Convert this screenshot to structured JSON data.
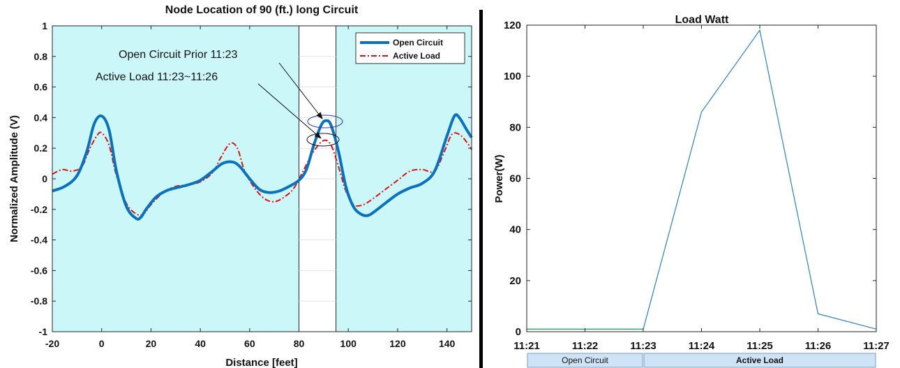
{
  "chart_data": [
    {
      "type": "line",
      "title": "Node Location of 90 (ft.) long Circuit",
      "xlabel": "Distance [feet]",
      "ylabel": "Normalized Amplitude (V)",
      "xlim": [
        -20,
        150
      ],
      "ylim": [
        -1,
        1
      ],
      "xticks": [
        "-20",
        "0",
        "20",
        "40",
        "60",
        "80",
        "100",
        "120",
        "140"
      ],
      "yticks": [
        "-1",
        "-0.8",
        "-0.6",
        "-0.4",
        "-0.2",
        "0",
        "0.2",
        "0.4",
        "0.6",
        "0.8",
        "1"
      ],
      "shaded_regions": [
        {
          "x": [
            -20,
            80
          ],
          "color": "#ccf7f9"
        },
        {
          "x": [
            95,
            150
          ],
          "color": "#ccf7f9"
        }
      ],
      "legend": {
        "placement": "top-right",
        "entries": [
          "Open Circuit",
          "Active Load"
        ]
      },
      "series": [
        {
          "name": "Open Circuit",
          "color": "#0a72bd",
          "style": "solid-thick",
          "x": [
            -20,
            -15,
            -10,
            -6,
            -3,
            0,
            3,
            6,
            10,
            14,
            16,
            18,
            22,
            26,
            30,
            35,
            40,
            45,
            49,
            53,
            56,
            60,
            64,
            68,
            72,
            76,
            80,
            83,
            86,
            89,
            91,
            93,
            96,
            99,
            102,
            105,
            108,
            111,
            115,
            120,
            125,
            130,
            135,
            140,
            143,
            145,
            148,
            150
          ],
          "y": [
            -0.08,
            -0.05,
            0.02,
            0.18,
            0.36,
            0.41,
            0.32,
            0.05,
            -0.18,
            -0.26,
            -0.25,
            -0.2,
            -0.12,
            -0.08,
            -0.06,
            -0.04,
            -0.01,
            0.05,
            0.1,
            0.11,
            0.08,
            0.0,
            -0.07,
            -0.09,
            -0.08,
            -0.05,
            -0.01,
            0.06,
            0.22,
            0.35,
            0.38,
            0.35,
            0.18,
            -0.05,
            -0.18,
            -0.23,
            -0.24,
            -0.21,
            -0.16,
            -0.1,
            -0.06,
            -0.03,
            0.05,
            0.28,
            0.41,
            0.4,
            0.32,
            0.27
          ]
        },
        {
          "name": "Active Load",
          "color": "#e01010",
          "style": "dash-dot",
          "x": [
            -20,
            -16,
            -12,
            -8,
            -5,
            -2,
            0,
            3,
            6,
            10,
            14,
            17,
            20,
            25,
            30,
            35,
            40,
            45,
            48,
            52,
            55,
            58,
            62,
            66,
            70,
            74,
            78,
            82,
            86,
            90,
            93,
            96,
            99,
            102,
            106,
            110,
            115,
            120,
            125,
            130,
            135,
            139,
            142,
            145,
            148,
            150
          ],
          "y": [
            0.03,
            0.06,
            0.05,
            0.08,
            0.19,
            0.28,
            0.3,
            0.22,
            0.02,
            -0.16,
            -0.23,
            -0.23,
            -0.17,
            -0.09,
            -0.05,
            -0.04,
            -0.02,
            0.04,
            0.13,
            0.23,
            0.2,
            0.05,
            -0.06,
            -0.13,
            -0.15,
            -0.12,
            -0.06,
            0.06,
            0.18,
            0.25,
            0.22,
            0.08,
            -0.08,
            -0.17,
            -0.17,
            -0.13,
            -0.07,
            -0.01,
            0.05,
            0.06,
            0.05,
            0.18,
            0.29,
            0.29,
            0.24,
            0.19
          ]
        }
      ],
      "annotations": [
        {
          "text": "Open Circuit Prior 11:23",
          "points_to": [
            90,
            0.38
          ]
        },
        {
          "text": "Active Load 11:23~11:26",
          "points_to": [
            90,
            0.25
          ]
        }
      ]
    },
    {
      "type": "line",
      "title": "Load Watt",
      "xlabel": "",
      "ylabel": "Power(W)",
      "xlim": [
        "11:21",
        "11:27"
      ],
      "ylim": [
        0,
        120
      ],
      "xticks": [
        "11:21",
        "11:22",
        "11:23",
        "11:24",
        "11:25",
        "11:26",
        "11:27"
      ],
      "yticks": [
        "0",
        "20",
        "40",
        "60",
        "80",
        "100",
        "120"
      ],
      "grid": false,
      "series": [
        {
          "color": "#2a7fc8",
          "x": [
            "11:21",
            "11:22",
            "11:23",
            "11:24",
            "11:25",
            "11:26",
            "11:27"
          ],
          "y": [
            1,
            1,
            1,
            86,
            118,
            7,
            1
          ]
        }
      ],
      "bands": [
        {
          "label": "Open Circuit",
          "range": [
            "11:21",
            "11:23"
          ],
          "bold": false
        },
        {
          "label": "Active Load",
          "range": [
            "11:23",
            "11:27"
          ],
          "bold": true
        }
      ]
    }
  ]
}
